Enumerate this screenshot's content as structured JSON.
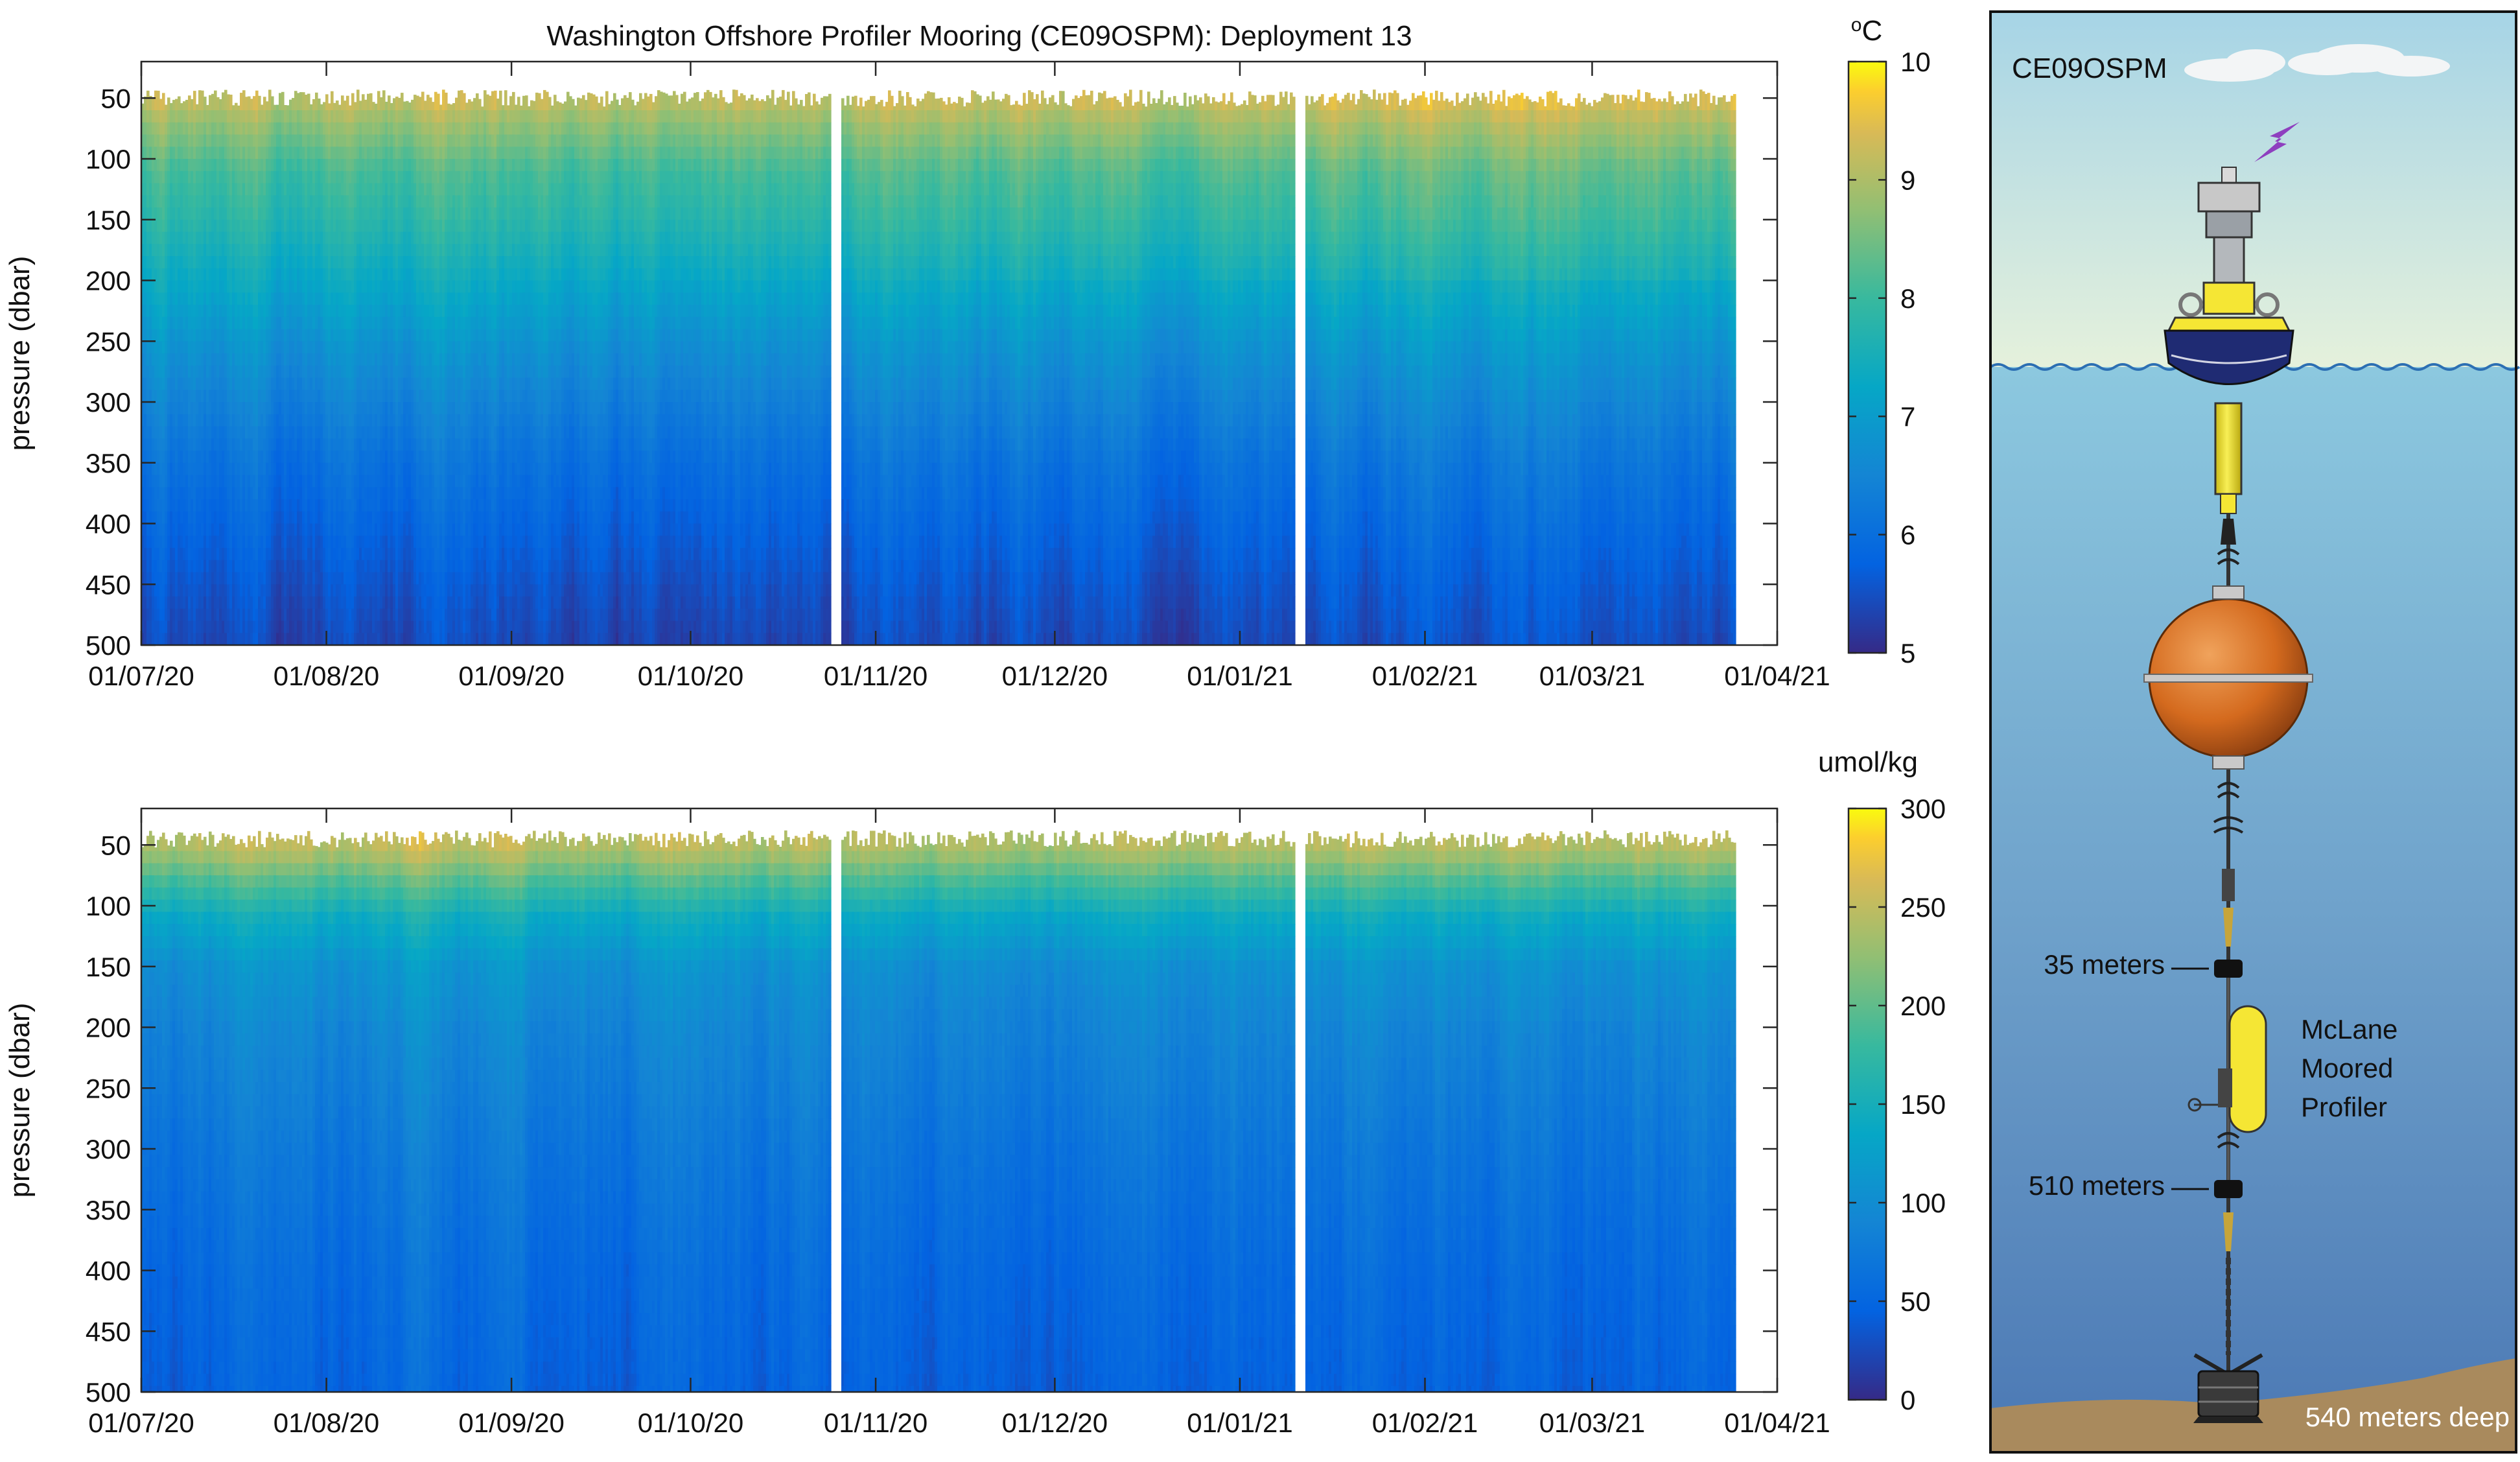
{
  "title": "Washington Offshore Profiler Mooring (CE09OSPM): Deployment 13",
  "chart_data": [
    {
      "type": "heatmap",
      "variable": "temperature",
      "ylabel": "pressure (dbar)",
      "yticks": [
        50,
        100,
        150,
        200,
        250,
        300,
        350,
        400,
        450,
        500
      ],
      "ylim": [
        500,
        20
      ],
      "y_reversed": true,
      "xticks": [
        "01/07/20",
        "01/08/20",
        "01/09/20",
        "01/10/20",
        "01/11/20",
        "01/12/20",
        "01/01/21",
        "01/02/21",
        "01/03/21",
        "01/04/21"
      ],
      "xlim": [
        "2020-07-01",
        "2021-04-01"
      ],
      "data_range": {
        "start": "2020-07-01",
        "end": "2021-03-25",
        "top_pressure": 50,
        "bottom_pressure": 505
      },
      "data_gaps": [
        "2020-10-25",
        "2021-01-11"
      ],
      "colorbar": {
        "label": "oC",
        "ticks": [
          5,
          6,
          7,
          8,
          9,
          10
        ],
        "range": [
          5,
          10
        ],
        "colormap": "parula"
      },
      "profile_keypoints": {
        "pressure": [
          50,
          75,
          110,
          150,
          200,
          250,
          300,
          350,
          400,
          450,
          505
        ],
        "value": [
          9.2,
          8.7,
          8.1,
          7.8,
          7.3,
          6.8,
          6.4,
          6.05,
          5.8,
          5.55,
          5.35
        ]
      },
      "grid": false
    },
    {
      "type": "heatmap",
      "variable": "dissolved oxygen",
      "ylabel": "pressure (dbar)",
      "yticks": [
        50,
        100,
        150,
        200,
        250,
        300,
        350,
        400,
        450,
        500
      ],
      "ylim": [
        500,
        20
      ],
      "y_reversed": true,
      "xticks": [
        "01/07/20",
        "01/08/20",
        "01/09/20",
        "01/10/20",
        "01/11/20",
        "01/12/20",
        "01/01/21",
        "01/02/21",
        "01/03/21",
        "01/04/21"
      ],
      "xlim": [
        "2020-07-01",
        "2021-04-01"
      ],
      "data_range": {
        "start": "2020-07-01",
        "end": "2021-03-25",
        "top_pressure": 45,
        "bottom_pressure": 505
      },
      "data_gaps": [
        "2020-10-25",
        "2021-01-11"
      ],
      "colorbar": {
        "label": "umol/kg",
        "ticks": [
          0,
          50,
          100,
          150,
          200,
          250,
          300
        ],
        "range": [
          0,
          300
        ],
        "colormap": "parula"
      },
      "profile_keypoints": {
        "pressure": [
          45,
          60,
          80,
          110,
          150,
          200,
          300,
          400,
          505
        ],
        "value": [
          250,
          230,
          190,
          140,
          105,
          90,
          70,
          55,
          45
        ]
      },
      "grid": false
    }
  ],
  "diagram": {
    "station": "CE09OSPM",
    "labels": {
      "top_instrument": "35 meters",
      "profiler_line1": "McLane",
      "profiler_line2": "Moored",
      "profiler_line3": "Profiler",
      "bottom_instrument": "510 meters",
      "depth": "540 meters deep"
    }
  },
  "colors": {
    "sky_top": "#a6d4e6",
    "sky_bottom": "#e5f1dc",
    "sea_top": "#8cc8df",
    "sea_bottom": "#4b78b4",
    "seabed": "#a98a5d",
    "buoy_yellow": "#f5e634",
    "buoy_navy": "#1f2b73",
    "float_orange": "#d46a1e",
    "lightning": "#8e3fbf"
  }
}
